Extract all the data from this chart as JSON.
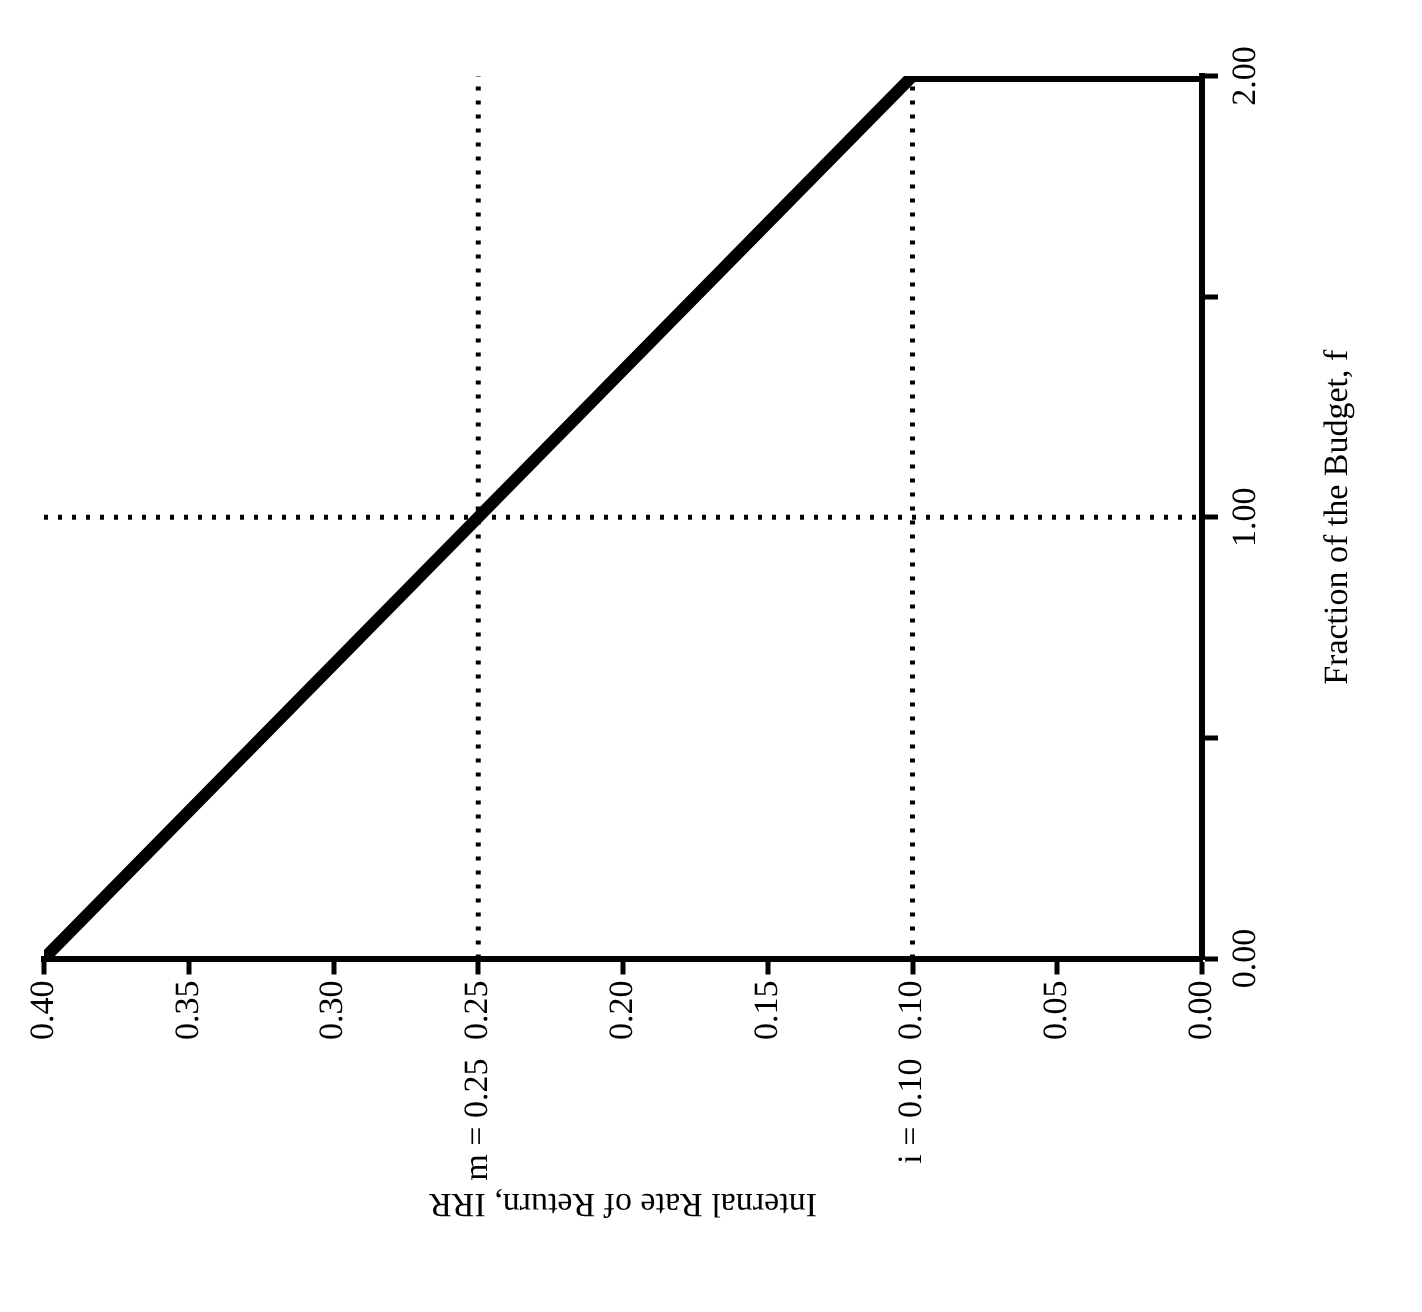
{
  "chart_data": {
    "type": "line",
    "xlabel": "Internal Rate of Return, IRR",
    "ylabel": "Fraction of the Budget, f",
    "series": [
      {
        "color": "#000000",
        "x": [
          0.4,
          0.1,
          0.0
        ],
        "values": [
          0,
          2,
          2
        ]
      }
    ],
    "xlim": [
      0.4,
      0.0
    ],
    "xticks": [
      {
        "value": 0.4,
        "label": "0.40"
      },
      {
        "value": 0.35,
        "label": "0.35"
      },
      {
        "value": 0.3,
        "label": "0.30"
      },
      {
        "value": 0.25,
        "label": "0.25"
      },
      {
        "value": 0.2,
        "label": "0.20"
      },
      {
        "value": 0.15,
        "label": "0.15"
      },
      {
        "value": 0.1,
        "label": "0.10"
      },
      {
        "value": 0.05,
        "label": "0.05"
      },
      {
        "value": 0.0,
        "label": "0.00"
      }
    ],
    "ylim": [
      0,
      2
    ],
    "yticks": [
      {
        "value": 0,
        "label": "0.00"
      },
      {
        "value": 0.5,
        "label": null
      },
      {
        "value": 1,
        "label": "1.00"
      },
      {
        "value": 1.5,
        "label": null
      },
      {
        "value": 2,
        "label": "2.00"
      }
    ],
    "ref_lines": [
      {
        "axis": "y",
        "value": 1,
        "line_style": "dotted"
      },
      {
        "axis": "x",
        "value": 0.25,
        "label": "m = 0.25",
        "line_style": "dotted"
      },
      {
        "axis": "x",
        "value": 0.1,
        "label": "i = 0.10",
        "line_style": "dotted"
      }
    ],
    "grid": false,
    "legend": false,
    "marker": "none",
    "line_style": "solid"
  }
}
